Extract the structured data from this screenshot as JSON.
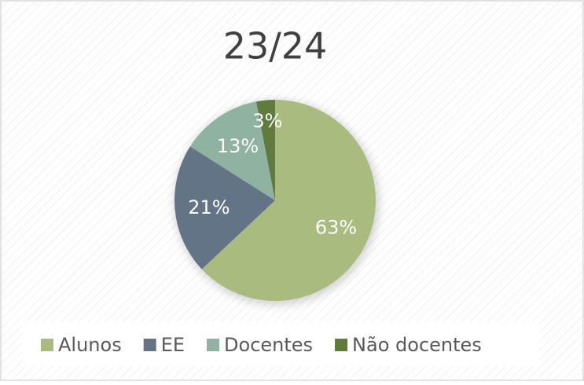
{
  "chart_data": {
    "type": "pie",
    "title": "23/24",
    "categories": [
      "Alunos",
      "EE",
      "Docentes",
      "Não docentes"
    ],
    "values": [
      63,
      21,
      13,
      3
    ],
    "value_labels": [
      "63%",
      "21%",
      "13%",
      "3%"
    ],
    "colors": [
      "#a9bb7f",
      "#637487",
      "#8fb3a0",
      "#617a3d"
    ],
    "legend": "bottom"
  }
}
